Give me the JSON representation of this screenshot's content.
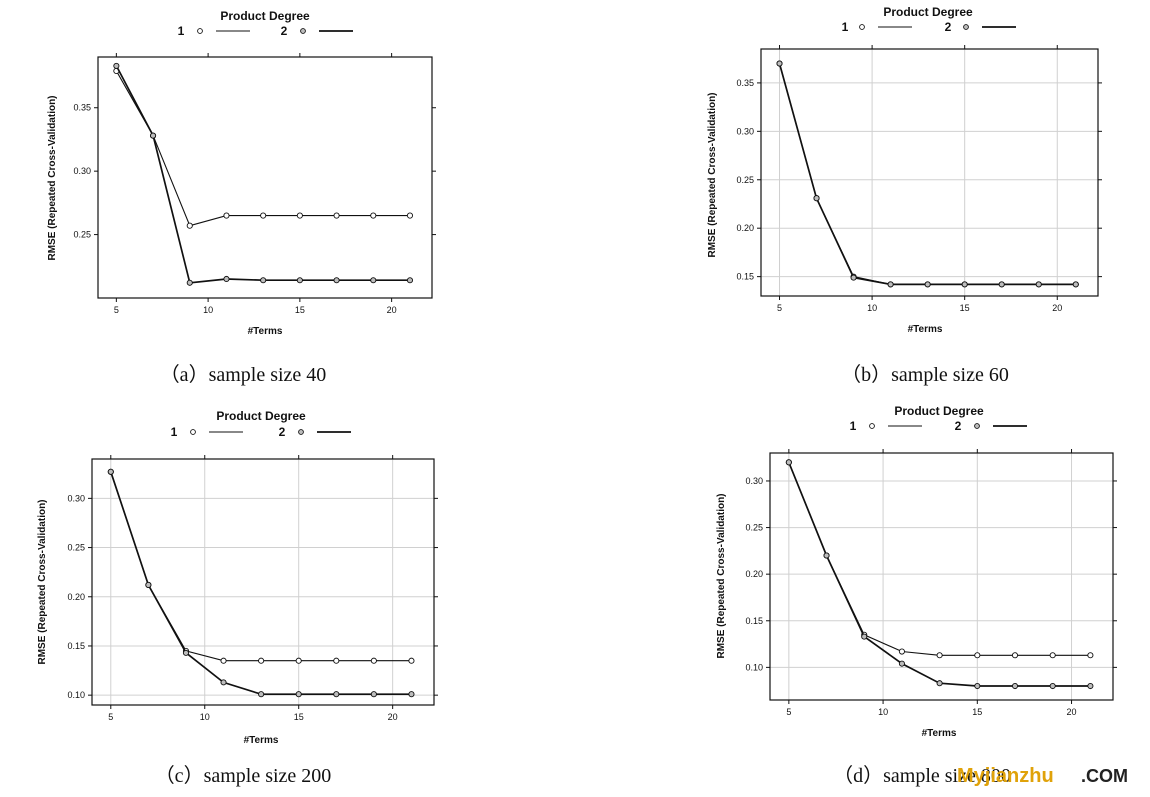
{
  "chart_data": [
    {
      "type": "line",
      "caption": "（a）sample size 40",
      "legend_title": "Product Degree",
      "legend_position": "top",
      "xlabel": "#Terms",
      "ylabel": "RMSE (Repeated Cross-Validation)",
      "xlim": [
        4,
        22.2
      ],
      "ylim": [
        0.2,
        0.39
      ],
      "xticks": [
        5,
        10,
        15,
        20
      ],
      "yticks": [
        0.25,
        0.3,
        0.35
      ],
      "grid": false,
      "series": [
        {
          "name": "1",
          "x": [
            5,
            7,
            9,
            11,
            13,
            15,
            17,
            19,
            21
          ],
          "values": [
            0.379,
            0.328,
            0.257,
            0.265,
            0.265,
            0.265,
            0.265,
            0.265,
            0.265
          ]
        },
        {
          "name": "2",
          "x": [
            5,
            7,
            9,
            11,
            13,
            15,
            17,
            19,
            21
          ],
          "values": [
            0.383,
            0.328,
            0.212,
            0.215,
            0.214,
            0.214,
            0.214,
            0.214,
            0.214
          ]
        }
      ]
    },
    {
      "type": "line",
      "caption": "（b）sample size 60",
      "legend_title": "Product Degree",
      "legend_position": "top",
      "xlabel": "#Terms",
      "ylabel": "RMSE (Repeated Cross-Validation)",
      "xlim": [
        4,
        22.2
      ],
      "ylim": [
        0.13,
        0.385
      ],
      "xticks": [
        5,
        10,
        15,
        20
      ],
      "yticks": [
        0.15,
        0.2,
        0.25,
        0.3,
        0.35
      ],
      "grid": true,
      "series": [
        {
          "name": "1",
          "x": [
            5,
            7,
            9,
            11,
            13,
            15,
            17,
            19,
            21
          ],
          "values": [
            0.37,
            0.231,
            0.15,
            0.142,
            0.142,
            0.142,
            0.142,
            0.142,
            0.142
          ]
        },
        {
          "name": "2",
          "x": [
            5,
            7,
            9,
            11,
            13,
            15,
            17,
            19,
            21
          ],
          "values": [
            0.37,
            0.231,
            0.149,
            0.142,
            0.142,
            0.142,
            0.142,
            0.142,
            0.142
          ]
        }
      ]
    },
    {
      "type": "line",
      "caption": "（c）sample size 200",
      "legend_title": "Product Degree",
      "legend_position": "top",
      "xlabel": "#Terms",
      "ylabel": "RMSE (Repeated Cross-Validation)",
      "xlim": [
        4,
        22.2
      ],
      "ylim": [
        0.09,
        0.34
      ],
      "xticks": [
        5,
        10,
        15,
        20
      ],
      "yticks": [
        0.1,
        0.15,
        0.2,
        0.25,
        0.3
      ],
      "grid": true,
      "series": [
        {
          "name": "1",
          "x": [
            5,
            7,
            9,
            11,
            13,
            15,
            17,
            19,
            21
          ],
          "values": [
            0.327,
            0.212,
            0.145,
            0.135,
            0.135,
            0.135,
            0.135,
            0.135,
            0.135
          ]
        },
        {
          "name": "2",
          "x": [
            5,
            7,
            9,
            11,
            13,
            15,
            17,
            19,
            21
          ],
          "values": [
            0.327,
            0.212,
            0.143,
            0.113,
            0.101,
            0.101,
            0.101,
            0.101,
            0.101
          ]
        }
      ]
    },
    {
      "type": "line",
      "caption": "（d）sample size 800",
      "legend_title": "Product Degree",
      "legend_position": "top",
      "xlabel": "#Terms",
      "ylabel": "RMSE (Repeated Cross-Validation)",
      "xlim": [
        4,
        22.2
      ],
      "ylim": [
        0.065,
        0.33
      ],
      "xticks": [
        5,
        10,
        15,
        20
      ],
      "yticks": [
        0.1,
        0.15,
        0.2,
        0.25,
        0.3
      ],
      "grid": true,
      "series": [
        {
          "name": "1",
          "x": [
            5,
            7,
            9,
            11,
            13,
            15,
            17,
            19,
            21
          ],
          "values": [
            0.32,
            0.22,
            0.135,
            0.117,
            0.113,
            0.113,
            0.113,
            0.113,
            0.113
          ]
        },
        {
          "name": "2",
          "x": [
            5,
            7,
            9,
            11,
            13,
            15,
            17,
            19,
            21
          ],
          "values": [
            0.32,
            0.22,
            0.133,
            0.104,
            0.083,
            0.08,
            0.08,
            0.08,
            0.08
          ]
        }
      ]
    }
  ],
  "watermark": {
    "part1": "Myjianzhu",
    "part2": ".COM"
  }
}
